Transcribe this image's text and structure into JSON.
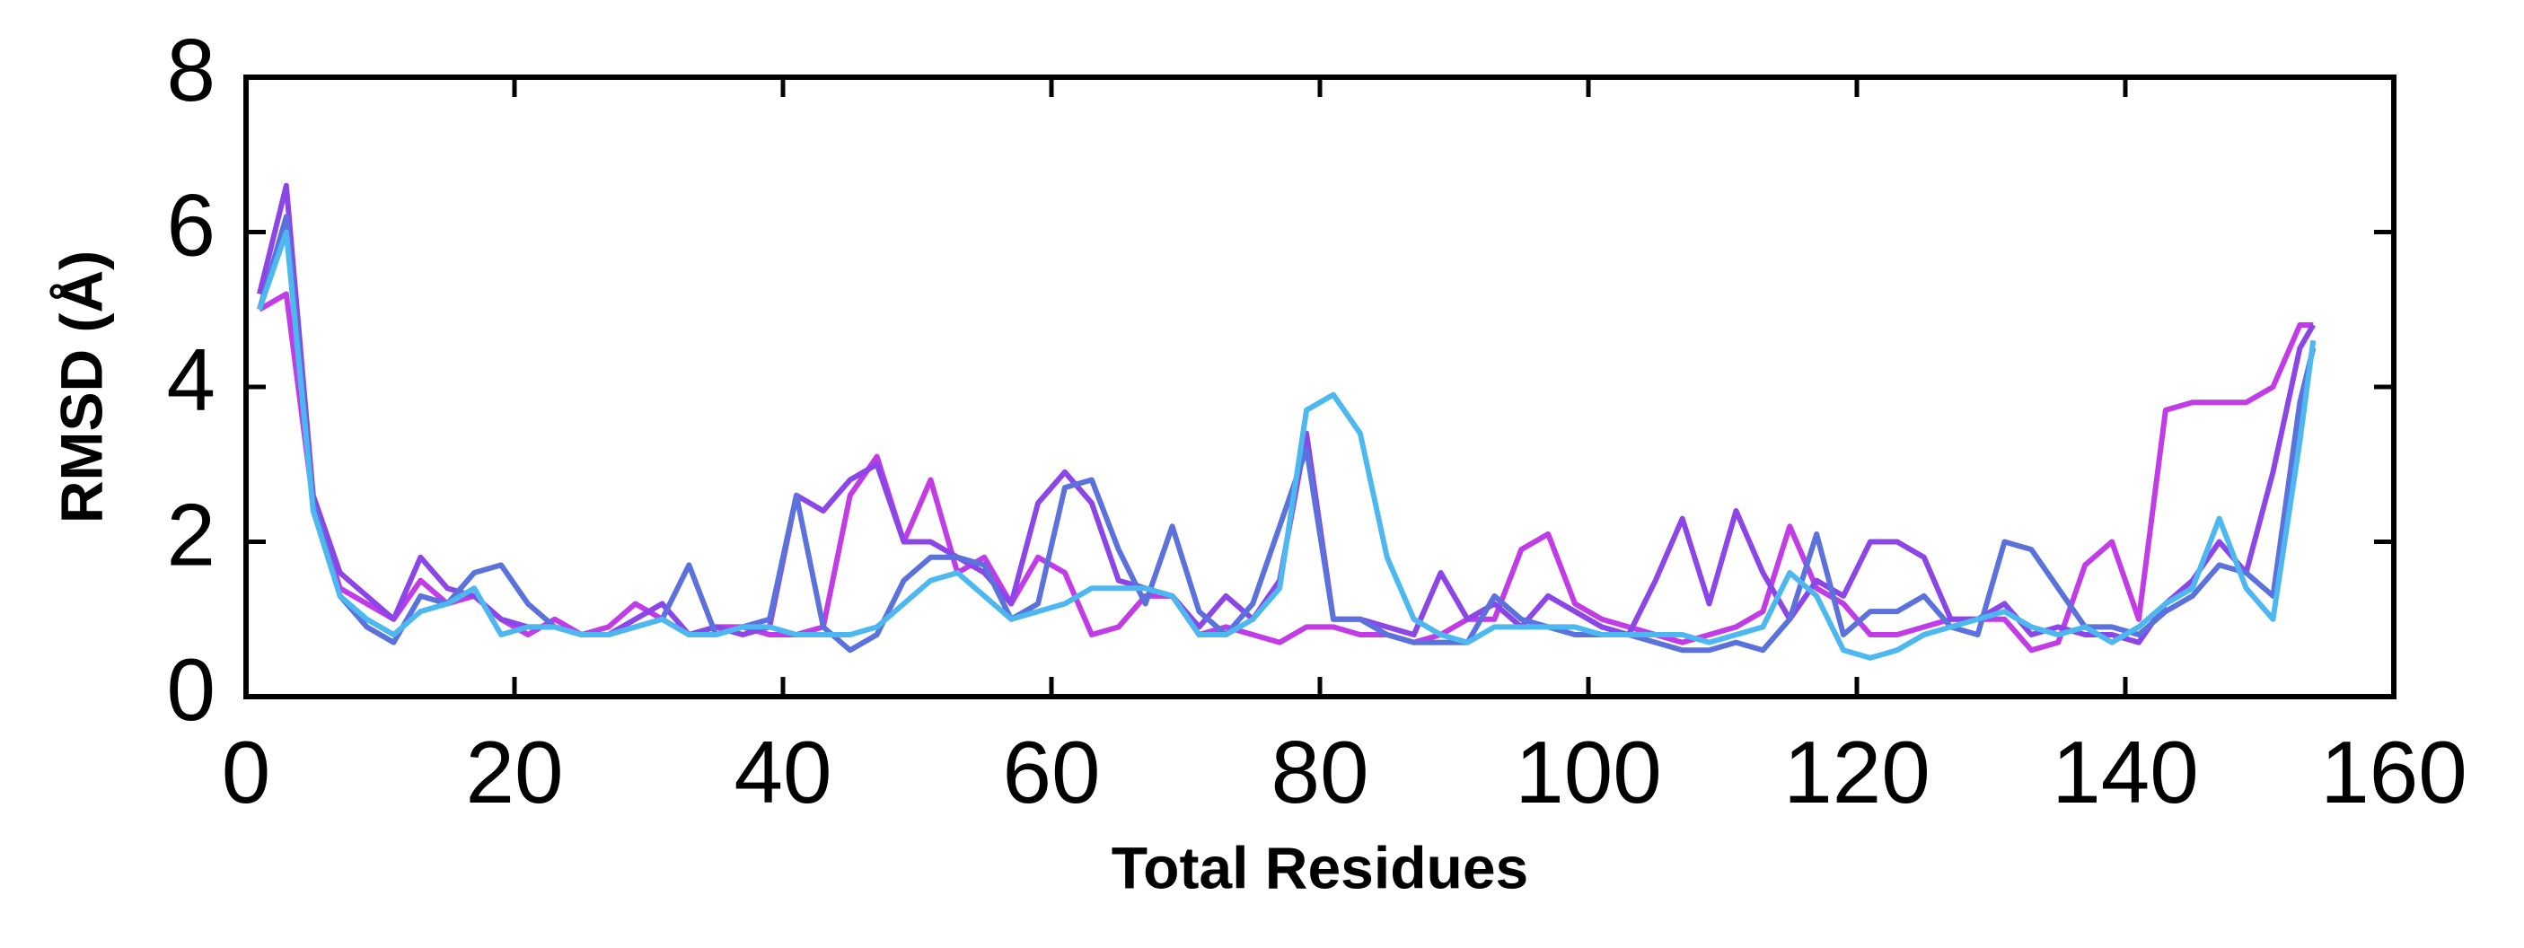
{
  "chart_data": {
    "type": "line",
    "x_label": "Total Residues",
    "y_label": "RMSD (Å)",
    "x": [
      1,
      3,
      5,
      7,
      9,
      11,
      13,
      15,
      17,
      19,
      21,
      23,
      25,
      27,
      29,
      31,
      33,
      35,
      37,
      39,
      41,
      43,
      45,
      47,
      49,
      51,
      53,
      55,
      57,
      59,
      61,
      63,
      65,
      67,
      69,
      71,
      73,
      75,
      77,
      79,
      81,
      83,
      85,
      87,
      89,
      91,
      93,
      95,
      97,
      99,
      101,
      103,
      105,
      107,
      109,
      111,
      113,
      115,
      117,
      119,
      121,
      123,
      125,
      127,
      129,
      131,
      133,
      135,
      137,
      139,
      141,
      143,
      145,
      147,
      149,
      151,
      153,
      154
    ],
    "series": [
      {
        "color": "#c13be6",
        "values": [
          5.0,
          5.2,
          2.5,
          1.4,
          1.2,
          1.0,
          1.5,
          1.2,
          1.3,
          1.0,
          0.8,
          1.0,
          0.8,
          0.9,
          1.2,
          1.0,
          0.8,
          0.9,
          0.9,
          0.8,
          0.8,
          0.9,
          2.6,
          3.1,
          2.0,
          2.8,
          1.6,
          1.8,
          1.2,
          1.8,
          1.6,
          0.8,
          0.9,
          1.3,
          1.3,
          0.8,
          0.9,
          0.8,
          0.7,
          0.9,
          0.9,
          0.8,
          0.8,
          0.7,
          0.8,
          1.0,
          1.0,
          1.9,
          2.1,
          1.2,
          1.0,
          0.9,
          0.8,
          0.7,
          0.8,
          0.9,
          1.1,
          2.2,
          1.4,
          1.2,
          0.8,
          0.8,
          0.9,
          1.0,
          1.0,
          1.0,
          0.6,
          0.7,
          1.7,
          2.0,
          1.0,
          3.7,
          3.8,
          3.8,
          3.8,
          4.0,
          4.8,
          4.8
        ]
      },
      {
        "color": "#8c45e6",
        "values": [
          5.2,
          6.6,
          2.6,
          1.6,
          1.3,
          1.0,
          1.8,
          1.4,
          1.3,
          1.0,
          0.9,
          0.9,
          0.8,
          0.8,
          1.0,
          1.2,
          0.8,
          0.9,
          0.8,
          0.9,
          2.6,
          2.4,
          2.8,
          3.0,
          2.0,
          2.0,
          1.8,
          1.6,
          1.2,
          2.5,
          2.9,
          2.5,
          1.5,
          1.4,
          1.3,
          0.9,
          1.3,
          1.0,
          1.5,
          3.4,
          1.0,
          1.0,
          0.9,
          0.8,
          1.6,
          1.0,
          1.2,
          0.9,
          1.3,
          1.1,
          0.9,
          0.8,
          1.5,
          2.3,
          1.2,
          2.4,
          1.6,
          1.0,
          1.5,
          1.3,
          2.0,
          2.0,
          1.8,
          1.0,
          1.0,
          1.2,
          0.8,
          0.9,
          0.8,
          0.8,
          0.7,
          1.2,
          1.5,
          2.0,
          1.6,
          2.9,
          4.5,
          4.8
        ]
      },
      {
        "color": "#5b72dd",
        "values": [
          5.0,
          6.2,
          2.5,
          1.3,
          0.9,
          0.7,
          1.3,
          1.2,
          1.6,
          1.7,
          1.2,
          0.9,
          0.8,
          0.8,
          0.9,
          1.0,
          1.7,
          0.8,
          0.9,
          1.0,
          2.6,
          0.9,
          0.6,
          0.8,
          1.5,
          1.8,
          1.8,
          1.7,
          1.0,
          1.2,
          2.7,
          2.8,
          1.9,
          1.2,
          2.2,
          1.1,
          0.8,
          1.2,
          2.2,
          3.2,
          1.0,
          1.0,
          0.8,
          0.7,
          0.7,
          0.7,
          1.3,
          1.0,
          0.9,
          0.8,
          0.8,
          0.8,
          0.7,
          0.6,
          0.6,
          0.7,
          0.6,
          1.0,
          2.1,
          0.8,
          1.1,
          1.1,
          1.3,
          0.9,
          0.8,
          2.0,
          1.9,
          1.4,
          0.9,
          0.9,
          0.8,
          1.1,
          1.3,
          1.7,
          1.6,
          1.3,
          3.8,
          4.5
        ]
      },
      {
        "color": "#4cb8ef",
        "values": [
          5.0,
          6.0,
          2.4,
          1.3,
          1.0,
          0.8,
          1.1,
          1.2,
          1.4,
          0.8,
          0.9,
          0.9,
          0.8,
          0.8,
          0.9,
          1.0,
          0.8,
          0.8,
          0.9,
          0.9,
          0.8,
          0.8,
          0.8,
          0.9,
          1.2,
          1.5,
          1.6,
          1.3,
          1.0,
          1.1,
          1.2,
          1.4,
          1.4,
          1.4,
          1.3,
          0.8,
          0.8,
          1.0,
          1.4,
          3.7,
          3.9,
          3.4,
          1.8,
          1.0,
          0.8,
          0.7,
          0.9,
          0.9,
          0.9,
          0.9,
          0.8,
          0.8,
          0.8,
          0.8,
          0.7,
          0.8,
          0.9,
          1.6,
          1.3,
          0.6,
          0.5,
          0.6,
          0.8,
          0.9,
          1.0,
          1.1,
          0.9,
          0.8,
          0.9,
          0.7,
          0.9,
          1.2,
          1.4,
          2.3,
          1.4,
          1.0,
          3.3,
          4.6
        ]
      }
    ],
    "xlim": [
      0,
      160
    ],
    "xticks": [
      0,
      20,
      40,
      60,
      80,
      100,
      120,
      140,
      160
    ],
    "ylim": [
      0,
      8
    ],
    "yticks": [
      0,
      2,
      4,
      6,
      8
    ],
    "grid": false
  }
}
